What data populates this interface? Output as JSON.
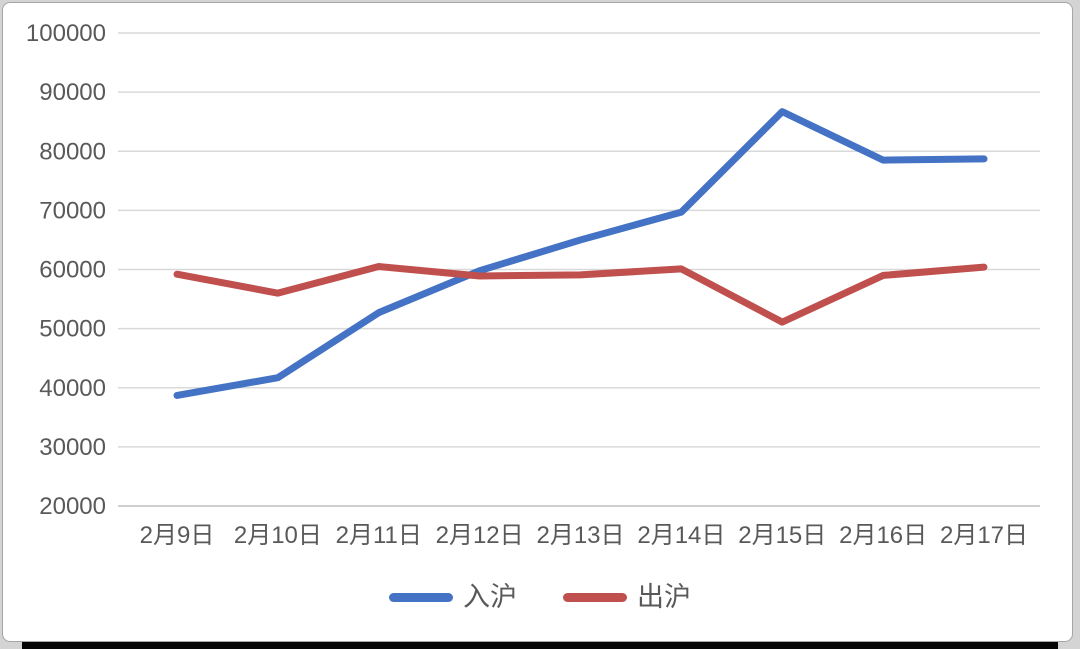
{
  "page": {
    "background_color": "#d4d4d4",
    "panel_background": "#ffffff",
    "panel_border_color": "#a6a6a6",
    "bottom_bar_color": "#060606"
  },
  "chart_data": {
    "type": "line",
    "title": "",
    "categories": [
      "2月9日",
      "2月10日",
      "2月11日",
      "2月12日",
      "2月13日",
      "2月14日",
      "2月15日",
      "2月16日",
      "2月17日"
    ],
    "series": [
      {
        "name": "入沪",
        "color": "#4472C4",
        "values": [
          38700,
          41700,
          52700,
          59800,
          65000,
          69700,
          86700,
          78500,
          78700
        ]
      },
      {
        "name": "出沪",
        "color": "#C0504D",
        "values": [
          59200,
          56000,
          60500,
          58900,
          59100,
          60100,
          51100,
          59000,
          60400
        ]
      }
    ],
    "xlabel": "",
    "ylabel": "",
    "ylim": [
      20000,
      100000
    ],
    "ytick_step": 10000,
    "ytick_labels": [
      "20000",
      "30000",
      "40000",
      "50000",
      "60000",
      "70000",
      "80000",
      "90000",
      "100000"
    ],
    "grid": "horizontal",
    "gridline_color": "#d9d9d9",
    "axis_line_color": "#bfbfbf",
    "tick_label_color": "#595959",
    "legend_position": "bottom",
    "line_width": 7
  }
}
